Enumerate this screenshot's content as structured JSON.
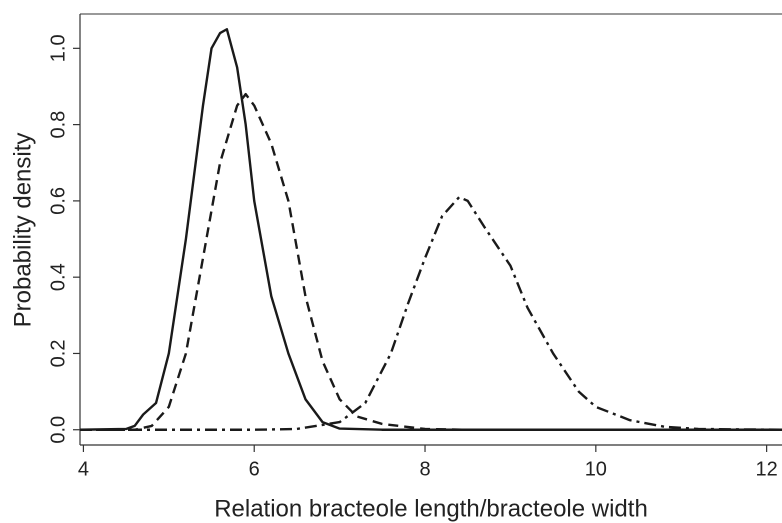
{
  "chart_data": {
    "type": "line",
    "x_label": "Relation bracteole length/bracteole width",
    "y_label": "Probability density",
    "xlim": [
      3.96,
      12.18
    ],
    "ylim": [
      -0.04,
      1.09
    ],
    "xticks": [
      4,
      6,
      8,
      10,
      12
    ],
    "yticks": [
      {
        "value": 0,
        "label": "0.0"
      },
      0.2,
      0.4,
      0.6,
      0.8,
      {
        "value": 1,
        "label": "1.0"
      }
    ],
    "grid": false,
    "series": [
      {
        "color": "#1a1a1a",
        "line_style": "solid",
        "x": [
          3.96,
          4.5,
          4.6,
          4.7,
          4.85,
          5.0,
          5.2,
          5.4,
          5.5,
          5.6,
          5.68,
          5.8,
          5.9,
          6.0,
          6.2,
          6.4,
          6.6,
          6.8,
          7.0,
          7.5,
          12.18
        ],
        "values": [
          0,
          0.002,
          0.01,
          0.04,
          0.07,
          0.2,
          0.5,
          0.85,
          1.0,
          1.04,
          1.05,
          0.95,
          0.8,
          0.6,
          0.35,
          0.2,
          0.08,
          0.02,
          0.003,
          0,
          0
        ]
      },
      {
        "color": "#1a1a1a",
        "line_style": "dashed",
        "x": [
          3.96,
          4.6,
          4.8,
          5.0,
          5.2,
          5.4,
          5.6,
          5.8,
          5.9,
          6.0,
          6.2,
          6.4,
          6.6,
          6.8,
          7.0,
          7.2,
          7.5,
          8.0,
          8.5,
          12.18
        ],
        "values": [
          0,
          0,
          0.01,
          0.06,
          0.2,
          0.45,
          0.7,
          0.85,
          0.88,
          0.85,
          0.75,
          0.6,
          0.35,
          0.18,
          0.08,
          0.035,
          0.015,
          0.002,
          0,
          0
        ]
      },
      {
        "color": "#1a1a1a",
        "line_style": "dashdot",
        "x": [
          3.96,
          6.0,
          6.5,
          7.0,
          7.3,
          7.6,
          7.8,
          8.0,
          8.2,
          8.4,
          8.5,
          8.7,
          9.0,
          9.2,
          9.5,
          9.8,
          10.0,
          10.4,
          10.8,
          11.2,
          12.18
        ],
        "values": [
          0,
          0,
          0.002,
          0.02,
          0.07,
          0.2,
          0.33,
          0.45,
          0.56,
          0.61,
          0.6,
          0.53,
          0.43,
          0.32,
          0.2,
          0.1,
          0.06,
          0.025,
          0.008,
          0.002,
          0
        ]
      }
    ]
  }
}
